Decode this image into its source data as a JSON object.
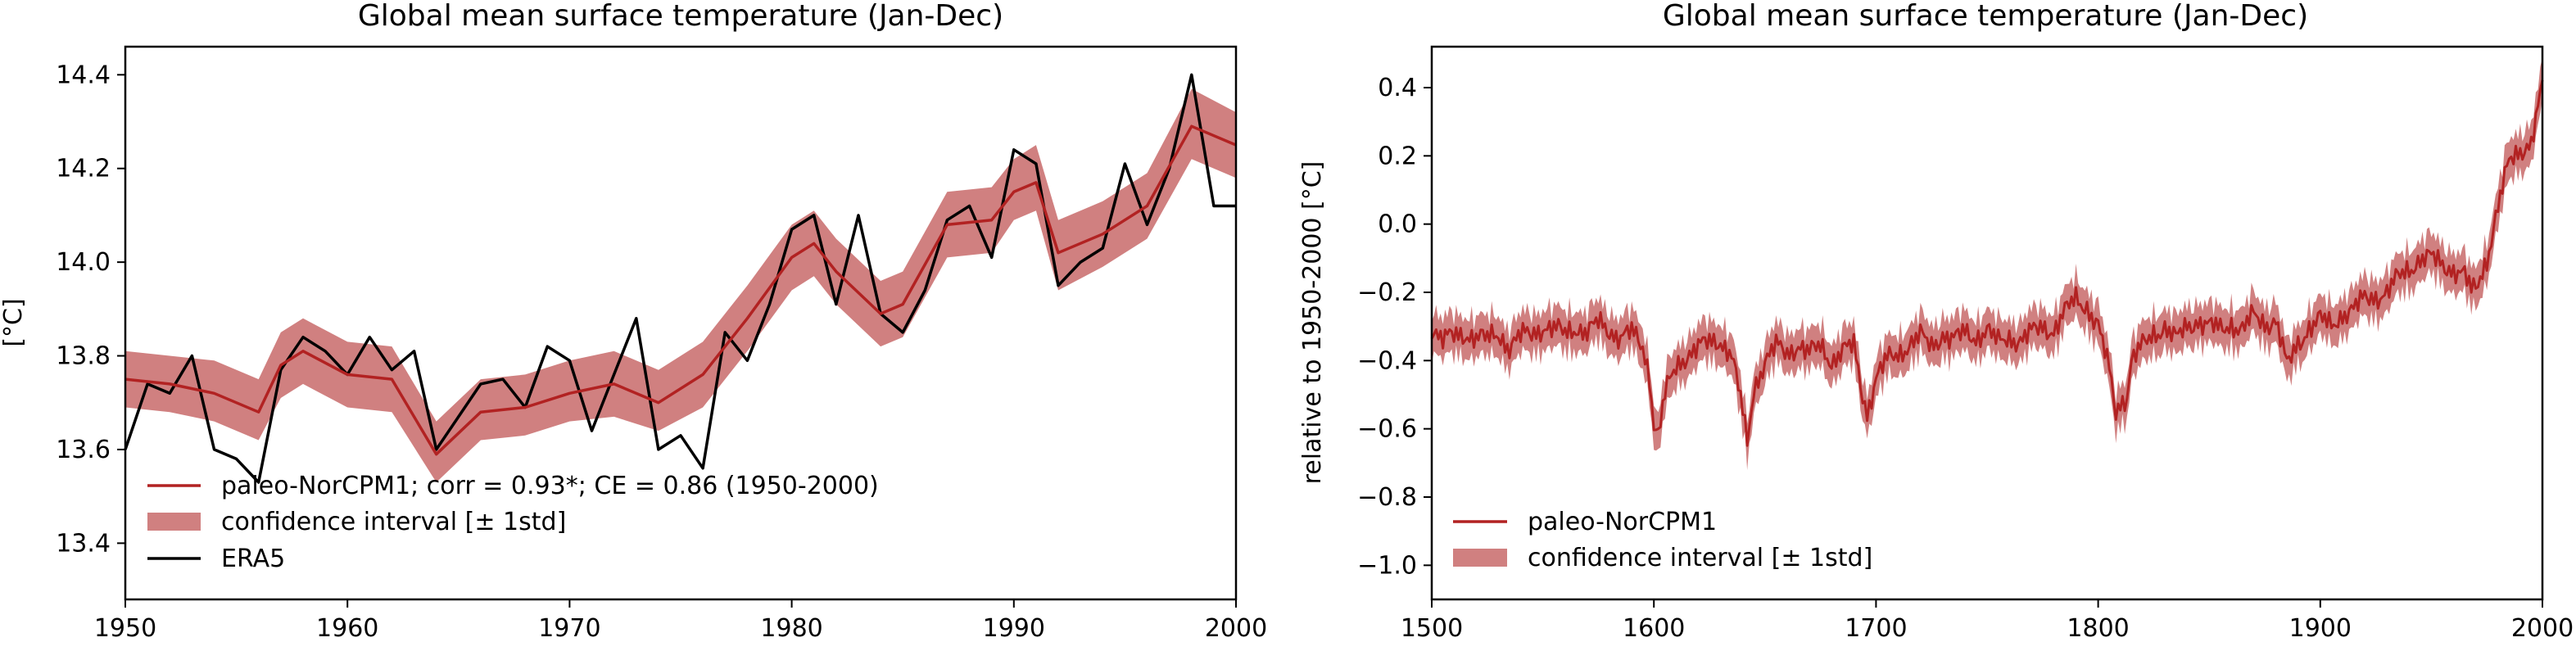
{
  "colors": {
    "model": "#b22222",
    "band": "#d08080",
    "obs": "#000000"
  },
  "chart_data": [
    {
      "type": "line",
      "title": "Global mean surface temperature (Jan-Dec)",
      "xlabel": "",
      "ylabel": "[°C]",
      "xlim": [
        1950,
        2000
      ],
      "ylim": [
        13.28,
        14.46
      ],
      "xticks": [
        1950,
        1960,
        1970,
        1980,
        1990,
        2000
      ],
      "yticks": [
        13.4,
        13.6,
        13.8,
        14.0,
        14.2,
        14.4
      ],
      "ytick_labels": [
        "13.4",
        "13.6",
        "13.8",
        "14.0",
        "14.2",
        "14.4"
      ],
      "grid": false,
      "legend": {
        "placement": "lower-left",
        "entries": [
          "paleo-NorCPM1; corr = 0.93*; CE = 0.86 (1950-2000)",
          "confidence interval [± 1std]",
          "ERA5"
        ]
      },
      "x": [
        1950,
        1952,
        1954,
        1956,
        1957,
        1958,
        1960,
        1962,
        1964,
        1966,
        1968,
        1970,
        1972,
        1974,
        1976,
        1978,
        1980,
        1981,
        1982,
        1984,
        1985,
        1987,
        1989,
        1990,
        1991,
        1992,
        1994,
        1996,
        1998,
        2000
      ],
      "series": [
        {
          "name": "paleo-NorCPM1",
          "values": [
            13.75,
            13.74,
            13.72,
            13.68,
            13.78,
            13.81,
            13.76,
            13.75,
            13.59,
            13.68,
            13.69,
            13.72,
            13.74,
            13.7,
            13.76,
            13.88,
            14.01,
            14.04,
            13.98,
            13.89,
            13.91,
            14.08,
            14.09,
            14.15,
            14.17,
            14.02,
            14.06,
            14.12,
            14.29,
            14.25
          ]
        },
        {
          "name": "confidence interval [± 1std]",
          "lower": [
            13.69,
            13.68,
            13.66,
            13.62,
            13.71,
            13.74,
            13.69,
            13.68,
            13.53,
            13.62,
            13.63,
            13.66,
            13.67,
            13.64,
            13.69,
            13.81,
            13.94,
            13.97,
            13.91,
            13.82,
            13.84,
            14.01,
            14.02,
            14.09,
            14.11,
            13.94,
            13.99,
            14.05,
            14.22,
            14.18
          ],
          "upper": [
            13.81,
            13.8,
            13.79,
            13.75,
            13.85,
            13.88,
            13.83,
            13.82,
            13.66,
            13.75,
            13.76,
            13.79,
            13.81,
            13.77,
            13.83,
            13.95,
            14.08,
            14.11,
            14.05,
            13.96,
            13.98,
            14.15,
            14.16,
            14.22,
            14.25,
            14.09,
            14.13,
            14.19,
            14.37,
            14.32
          ]
        },
        {
          "name": "ERA5",
          "x": [
            1950,
            1951,
            1952,
            1953,
            1954,
            1955,
            1956,
            1957,
            1958,
            1959,
            1960,
            1961,
            1962,
            1963,
            1964,
            1965,
            1966,
            1967,
            1968,
            1969,
            1970,
            1971,
            1972,
            1973,
            1974,
            1975,
            1976,
            1977,
            1978,
            1979,
            1980,
            1981,
            1982,
            1983,
            1984,
            1985,
            1986,
            1987,
            1988,
            1989,
            1990,
            1991,
            1992,
            1993,
            1994,
            1995,
            1996,
            1997,
            1998,
            1999,
            2000
          ],
          "values": [
            13.6,
            13.74,
            13.72,
            13.8,
            13.6,
            13.58,
            13.53,
            13.77,
            13.84,
            13.81,
            13.76,
            13.84,
            13.77,
            13.81,
            13.6,
            13.67,
            13.74,
            13.75,
            13.69,
            13.82,
            13.79,
            13.64,
            13.76,
            13.88,
            13.6,
            13.63,
            13.56,
            13.85,
            13.79,
            13.91,
            14.07,
            14.1,
            13.91,
            14.1,
            13.89,
            13.85,
            13.94,
            14.09,
            14.12,
            14.01,
            14.24,
            14.21,
            13.95,
            14.0,
            14.03,
            14.21,
            14.08,
            14.2,
            14.4,
            14.12,
            14.12
          ]
        }
      ]
    },
    {
      "type": "line",
      "title": "Global mean surface temperature (Jan-Dec)",
      "xlabel": "",
      "ylabel": "relative to 1950-2000 [°C]",
      "xlim": [
        1500,
        2000
      ],
      "ylim": [
        -1.1,
        0.52
      ],
      "xticks": [
        1500,
        1600,
        1700,
        1800,
        1900,
        2000
      ],
      "yticks": [
        -1.0,
        -0.8,
        -0.6,
        -0.4,
        -0.2,
        0.0,
        0.2,
        0.4
      ],
      "ytick_labels": [
        "−1.0",
        "−0.8",
        "−0.6",
        "−0.4",
        "−0.2",
        "0.0",
        "0.2",
        "0.4"
      ],
      "grid": false,
      "legend": {
        "placement": "lower-left",
        "entries": [
          "paleo-NorCPM1",
          "confidence interval [± 1std]"
        ]
      },
      "band_halfwidth": 0.06,
      "series": [
        {
          "name": "paleo-NorCPM1",
          "x": [
            1500,
            1505,
            1510,
            1515,
            1520,
            1525,
            1530,
            1535,
            1540,
            1545,
            1550,
            1555,
            1560,
            1565,
            1570,
            1575,
            1580,
            1585,
            1590,
            1595,
            1598,
            1600,
            1602,
            1605,
            1610,
            1615,
            1620,
            1625,
            1630,
            1635,
            1640,
            1642,
            1645,
            1650,
            1655,
            1660,
            1665,
            1670,
            1675,
            1680,
            1685,
            1690,
            1694,
            1696,
            1700,
            1705,
            1710,
            1715,
            1720,
            1725,
            1730,
            1735,
            1740,
            1745,
            1750,
            1755,
            1760,
            1765,
            1770,
            1775,
            1780,
            1785,
            1790,
            1795,
            1800,
            1805,
            1808,
            1810,
            1813,
            1815,
            1820,
            1825,
            1830,
            1835,
            1840,
            1845,
            1850,
            1855,
            1860,
            1865,
            1870,
            1875,
            1880,
            1883,
            1885,
            1890,
            1895,
            1900,
            1905,
            1910,
            1915,
            1920,
            1925,
            1930,
            1935,
            1940,
            1945,
            1950,
            1955,
            1960,
            1965,
            1968,
            1970,
            1975,
            1980,
            1985,
            1990,
            1995,
            2000
          ],
          "values": [
            -0.3,
            -0.34,
            -0.33,
            -0.32,
            -0.33,
            -0.34,
            -0.32,
            -0.36,
            -0.33,
            -0.32,
            -0.3,
            -0.31,
            -0.32,
            -0.3,
            -0.32,
            -0.29,
            -0.31,
            -0.33,
            -0.32,
            -0.36,
            -0.44,
            -0.58,
            -0.62,
            -0.5,
            -0.42,
            -0.38,
            -0.36,
            -0.35,
            -0.34,
            -0.38,
            -0.55,
            -0.65,
            -0.48,
            -0.4,
            -0.36,
            -0.38,
            -0.35,
            -0.38,
            -0.36,
            -0.4,
            -0.37,
            -0.36,
            -0.5,
            -0.55,
            -0.45,
            -0.4,
            -0.38,
            -0.35,
            -0.33,
            -0.36,
            -0.32,
            -0.34,
            -0.32,
            -0.33,
            -0.31,
            -0.35,
            -0.33,
            -0.34,
            -0.32,
            -0.3,
            -0.31,
            -0.26,
            -0.22,
            -0.24,
            -0.3,
            -0.43,
            -0.55,
            -0.52,
            -0.5,
            -0.4,
            -0.36,
            -0.32,
            -0.3,
            -0.34,
            -0.3,
            -0.28,
            -0.3,
            -0.31,
            -0.29,
            -0.31,
            -0.27,
            -0.29,
            -0.28,
            -0.36,
            -0.42,
            -0.35,
            -0.3,
            -0.28,
            -0.3,
            -0.26,
            -0.25,
            -0.22,
            -0.21,
            -0.2,
            -0.16,
            -0.13,
            -0.1,
            -0.1,
            -0.12,
            -0.13,
            -0.15,
            -0.2,
            -0.19,
            -0.1,
            0.05,
            0.18,
            0.22,
            0.24,
            0.4
          ]
        },
        {
          "name": "confidence interval [± 1std]"
        }
      ]
    }
  ]
}
